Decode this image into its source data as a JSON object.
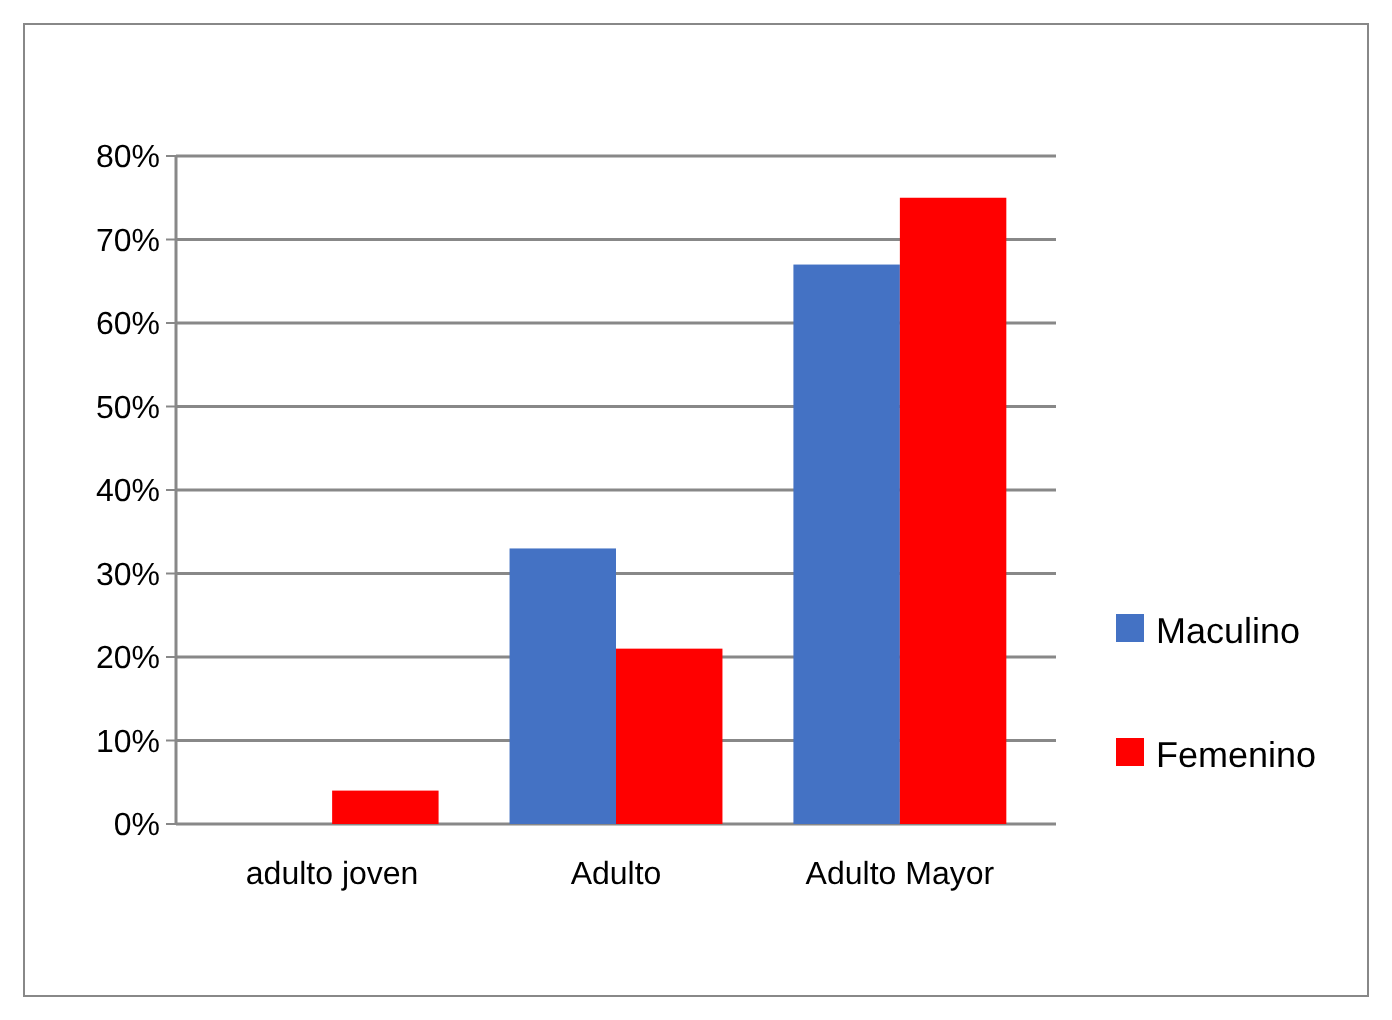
{
  "chart_data": {
    "type": "bar",
    "categories": [
      "adulto joven",
      "Adulto",
      "Adulto Mayor"
    ],
    "series": [
      {
        "name": "Maculino",
        "color": "#4472c4",
        "values": [
          0,
          33,
          67
        ]
      },
      {
        "name": "Femenino",
        "color": "#ff0000",
        "values": [
          4,
          21,
          75
        ]
      }
    ],
    "ylim": [
      0,
      80
    ],
    "yticks": [
      {
        "value": 0,
        "label": "0%"
      },
      {
        "value": 10,
        "label": "10%"
      },
      {
        "value": 20,
        "label": "20%"
      },
      {
        "value": 30,
        "label": "30%"
      },
      {
        "value": 40,
        "label": "40%"
      },
      {
        "value": 50,
        "label": "50%"
      },
      {
        "value": 60,
        "label": "60%"
      },
      {
        "value": 70,
        "label": "70%"
      },
      {
        "value": 80,
        "label": "80%"
      }
    ],
    "grid": "y",
    "legend": "right"
  }
}
